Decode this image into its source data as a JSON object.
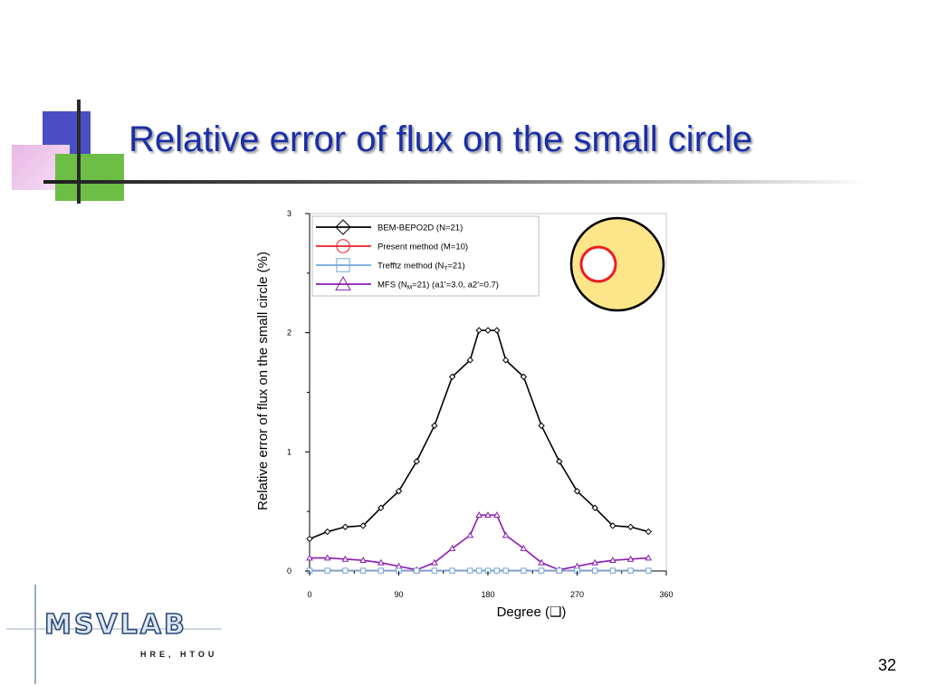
{
  "slide": {
    "title": "Relative error of flux on the small circle",
    "page_number": "32"
  },
  "logo": {
    "text": "MSVLAB",
    "subtext": "HRE, HTOU"
  },
  "colors": {
    "title": "#1a2fa8",
    "bem": "#000000",
    "present": "#ee1c24",
    "trefftz": "#6fa8dc",
    "mfs": "#8a1ab2",
    "inset_fill": "#fde58a",
    "inset_small_circle": "#ee1c24"
  },
  "chart_data": {
    "type": "line",
    "xlabel": "Degree (❑)",
    "ylabel": "Relative error of flux on the small circle (%)",
    "xlim": [
      0,
      360
    ],
    "ylim": [
      0,
      3
    ],
    "xticks": [
      "0",
      "90",
      "180",
      "270",
      "360"
    ],
    "yticks": [
      "0",
      "1",
      "2",
      "3"
    ],
    "grid": false,
    "legend_position": "top-left",
    "x": [
      0,
      18,
      36,
      54,
      72,
      90,
      108,
      126,
      144,
      162,
      171,
      180,
      189,
      198,
      216,
      234,
      252,
      270,
      288,
      306,
      324,
      342
    ],
    "series": [
      {
        "name": "BEM-BEPO2D (N=21)",
        "marker": "diamond",
        "color": "#000000",
        "values": [
          0.27,
          0.33,
          0.37,
          0.38,
          0.53,
          0.67,
          0.92,
          1.22,
          1.63,
          1.77,
          2.02,
          2.02,
          2.02,
          1.77,
          1.63,
          1.22,
          0.92,
          0.67,
          0.53,
          0.38,
          0.37,
          0.33
        ]
      },
      {
        "name": "Present method (M=10)",
        "marker": "circle",
        "color": "#ee1c24",
        "values": [
          0.003,
          0.003,
          0.003,
          0.003,
          0.003,
          0.003,
          0.003,
          0.003,
          0.003,
          0.003,
          0.003,
          0.003,
          0.003,
          0.003,
          0.003,
          0.003,
          0.003,
          0.003,
          0.003,
          0.003,
          0.003,
          0.003
        ]
      },
      {
        "name": "Trefftz method (NT=21)",
        "marker": "square",
        "color": "#6fa8dc",
        "values": [
          0.003,
          0.003,
          0.003,
          0.003,
          0.003,
          0.003,
          0.003,
          0.003,
          0.003,
          0.003,
          0.003,
          0.003,
          0.003,
          0.003,
          0.003,
          0.003,
          0.003,
          0.003,
          0.003,
          0.003,
          0.003,
          0.003
        ]
      },
      {
        "name": "MFS (NM=21) (a1'=3.0, a2'=0.7)",
        "marker": "triangle",
        "color": "#8a1ab2",
        "values": [
          0.11,
          0.11,
          0.1,
          0.09,
          0.07,
          0.04,
          0.01,
          0.07,
          0.19,
          0.3,
          0.47,
          0.47,
          0.47,
          0.3,
          0.19,
          0.07,
          0.01,
          0.04,
          0.07,
          0.09,
          0.1,
          0.11
        ]
      }
    ],
    "legend": [
      {
        "prefix": "BEM-BEPO2D (N=21)",
        "sub": "",
        "suffix": ""
      },
      {
        "prefix": "Present method (M=10)",
        "sub": "",
        "suffix": ""
      },
      {
        "prefix": "Trefftz method (N",
        "sub": "T",
        "suffix": "=21)"
      },
      {
        "prefix": "MFS (N",
        "sub": "M",
        "suffix": "=21) (a1'=3.0, a2'=0.7)"
      }
    ]
  }
}
